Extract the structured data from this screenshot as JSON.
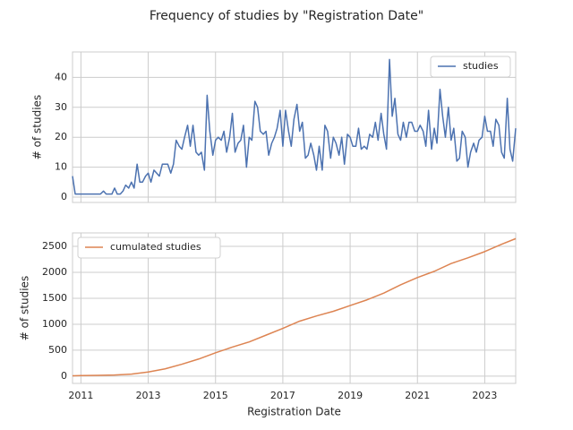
{
  "title": "Frequency of studies by \"Registration Date\"",
  "chart_data": [
    {
      "type": "line",
      "ylabel": "# of studies",
      "legend": "upper right",
      "grid": true,
      "xlim": [
        2010.75,
        2023.92
      ],
      "xticks": [
        2011,
        2013,
        2015,
        2017,
        2019,
        2021,
        2023
      ],
      "ylim": [
        -1.8,
        48.5
      ],
      "yticks": [
        0,
        10,
        20,
        30,
        40
      ],
      "x": [
        2010.75,
        2010.83,
        2010.92,
        2011,
        2011.08,
        2011.17,
        2011.25,
        2011.33,
        2011.42,
        2011.5,
        2011.58,
        2011.67,
        2011.75,
        2011.83,
        2011.92,
        2012,
        2012.08,
        2012.17,
        2012.25,
        2012.33,
        2012.42,
        2012.5,
        2012.58,
        2012.67,
        2012.75,
        2012.83,
        2012.92,
        2013,
        2013.08,
        2013.17,
        2013.25,
        2013.33,
        2013.42,
        2013.5,
        2013.58,
        2013.67,
        2013.75,
        2013.83,
        2013.92,
        2014,
        2014.08,
        2014.17,
        2014.25,
        2014.33,
        2014.42,
        2014.5,
        2014.58,
        2014.67,
        2014.75,
        2014.83,
        2014.92,
        2015,
        2015.08,
        2015.17,
        2015.25,
        2015.33,
        2015.42,
        2015.5,
        2015.58,
        2015.67,
        2015.75,
        2015.83,
        2015.92,
        2016,
        2016.08,
        2016.17,
        2016.25,
        2016.33,
        2016.42,
        2016.5,
        2016.58,
        2016.67,
        2016.75,
        2016.83,
        2016.92,
        2017,
        2017.08,
        2017.17,
        2017.25,
        2017.33,
        2017.42,
        2017.5,
        2017.58,
        2017.67,
        2017.75,
        2017.83,
        2017.92,
        2018,
        2018.08,
        2018.17,
        2018.25,
        2018.33,
        2018.42,
        2018.5,
        2018.58,
        2018.67,
        2018.75,
        2018.83,
        2018.92,
        2019,
        2019.08,
        2019.17,
        2019.25,
        2019.33,
        2019.42,
        2019.5,
        2019.58,
        2019.67,
        2019.75,
        2019.83,
        2019.92,
        2020,
        2020.08,
        2020.17,
        2020.25,
        2020.33,
        2020.42,
        2020.5,
        2020.58,
        2020.67,
        2020.75,
        2020.83,
        2020.92,
        2021,
        2021.08,
        2021.17,
        2021.25,
        2021.33,
        2021.42,
        2021.5,
        2021.58,
        2021.67,
        2021.75,
        2021.83,
        2021.92,
        2022,
        2022.08,
        2022.17,
        2022.25,
        2022.33,
        2022.42,
        2022.5,
        2022.58,
        2022.67,
        2022.75,
        2022.83,
        2022.92,
        2023,
        2023.08,
        2023.17,
        2023.25,
        2023.33,
        2023.42,
        2023.5,
        2023.58,
        2023.67,
        2023.75,
        2023.83,
        2023.92
      ],
      "series": [
        {
          "name": "studies",
          "color": "#4c72b0",
          "values": [
            7,
            1,
            1,
            1,
            1,
            1,
            1,
            1,
            1,
            1,
            1,
            2,
            1,
            1,
            1,
            3,
            1,
            1,
            2,
            4,
            3,
            5,
            3,
            11,
            5,
            5,
            7,
            8,
            5,
            9,
            8,
            7,
            11,
            11,
            11,
            8,
            11,
            19,
            17,
            16,
            20,
            24,
            17,
            24,
            15,
            14,
            15,
            9,
            34,
            22,
            14,
            19,
            20,
            19,
            22,
            15,
            20,
            28,
            15,
            18,
            19,
            24,
            10,
            20,
            19,
            32,
            30,
            22,
            21,
            22,
            14,
            18,
            20,
            23,
            29,
            17,
            29,
            22,
            17,
            26,
            31,
            22,
            25,
            13,
            14,
            18,
            14,
            9,
            17,
            9,
            24,
            22,
            13,
            20,
            18,
            14,
            20,
            11,
            21,
            20,
            17,
            17,
            23,
            16,
            17,
            16,
            21,
            20,
            25,
            19,
            28,
            21,
            16,
            46,
            27,
            33,
            21,
            19,
            25,
            20,
            25,
            25,
            22,
            22,
            24,
            22,
            17,
            29,
            16,
            23,
            18,
            36,
            27,
            20,
            30,
            19,
            23,
            12,
            13,
            22,
            20,
            10,
            15,
            18,
            15,
            19,
            20,
            27,
            22,
            22,
            17,
            26,
            24,
            15,
            13,
            33,
            16,
            12,
            23
          ]
        }
      ]
    },
    {
      "type": "line",
      "ylabel": "# of studies",
      "xlabel": "Registration Date",
      "legend": "upper left",
      "grid": true,
      "xlim": [
        2010.75,
        2023.92
      ],
      "xticks": [
        2011,
        2013,
        2015,
        2017,
        2019,
        2021,
        2023
      ],
      "ylim": [
        -140,
        2760
      ],
      "yticks": [
        0,
        500,
        1000,
        1500,
        2000,
        2500
      ],
      "x": [
        2010.75,
        2011,
        2011.5,
        2012,
        2012.5,
        2013,
        2013.5,
        2014,
        2014.5,
        2015,
        2015.5,
        2016,
        2016.5,
        2017,
        2017.5,
        2018,
        2018.5,
        2019,
        2019.5,
        2020,
        2020.5,
        2021,
        2021.5,
        2022,
        2022.5,
        2023,
        2023.5,
        2023.92
      ],
      "series": [
        {
          "name": "cumulated studies",
          "color": "#dd8452",
          "values": [
            7,
            10,
            16,
            22,
            40,
            80,
            140,
            230,
            330,
            450,
            560,
            660,
            790,
            920,
            1060,
            1160,
            1250,
            1360,
            1470,
            1600,
            1760,
            1900,
            2020,
            2170,
            2280,
            2400,
            2540,
            2650
          ]
        }
      ]
    }
  ]
}
